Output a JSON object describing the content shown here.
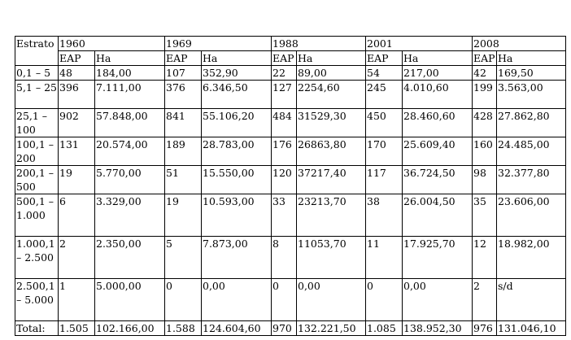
{
  "table": {
    "stratum_header": "Estrato",
    "years": [
      "1960",
      "1969",
      "1988",
      "2001",
      "2008"
    ],
    "sub_eap": "EAP",
    "sub_ha": "Ha",
    "rows": [
      {
        "stratum": "0,1 – 5",
        "cells": [
          "48",
          "184,00",
          "107",
          "352,90",
          "22",
          "89,00",
          "54",
          "217,00",
          "42",
          "169,50"
        ]
      },
      {
        "stratum": "5,1 – 25",
        "cells": [
          "396",
          "7.111,00",
          "376",
          "6.346,50",
          "127",
          "2254,60",
          "245",
          "4.010,60",
          "199",
          "3.563,00"
        ]
      },
      {
        "stratum": "25,1 – 100",
        "cells": [
          "902",
          "57.848,00",
          "841",
          "55.106,20",
          "484",
          "31529,30",
          "450",
          "28.460,60",
          "428",
          "27.862,80"
        ]
      },
      {
        "stratum": "100,1 – 200",
        "cells": [
          "131",
          "20.574,00",
          "189",
          "28.783,00",
          "176",
          "26863,80",
          "170",
          "25.609,40",
          "160",
          "24.485,00"
        ]
      },
      {
        "stratum": "200,1 – 500",
        "cells": [
          "19",
          "5.770,00",
          "51",
          "15.550,00",
          "120",
          "37217,40",
          "117",
          "36.724,50",
          "98",
          "32.377,80"
        ]
      },
      {
        "stratum": "500,1 – 1.000",
        "cells": [
          "6",
          "3.329,00",
          "19",
          "10.593,00",
          "33",
          "23213,70",
          "38",
          "26.004,50",
          "35",
          "23.606,00"
        ]
      },
      {
        "stratum": "1.000,1 – 2.500",
        "cells": [
          "2",
          "2.350,00",
          "5",
          "7.873,00",
          "8",
          "11053,70",
          "11",
          "17.925,70",
          "12",
          "18.982,00"
        ]
      },
      {
        "stratum": "2.500,1 – 5.000",
        "cells": [
          "1",
          "5.000,00",
          "0",
          "0,00",
          "0",
          "0,00",
          "0",
          "0,00",
          "2",
          "s/d"
        ]
      }
    ],
    "total": {
      "label": "Total:",
      "cells": [
        "1.505",
        "102.166,00",
        "1.588",
        "124.604,60",
        "970",
        "132.221,50",
        "1.085",
        "138.952,30",
        "976",
        "131.046,10"
      ]
    }
  }
}
